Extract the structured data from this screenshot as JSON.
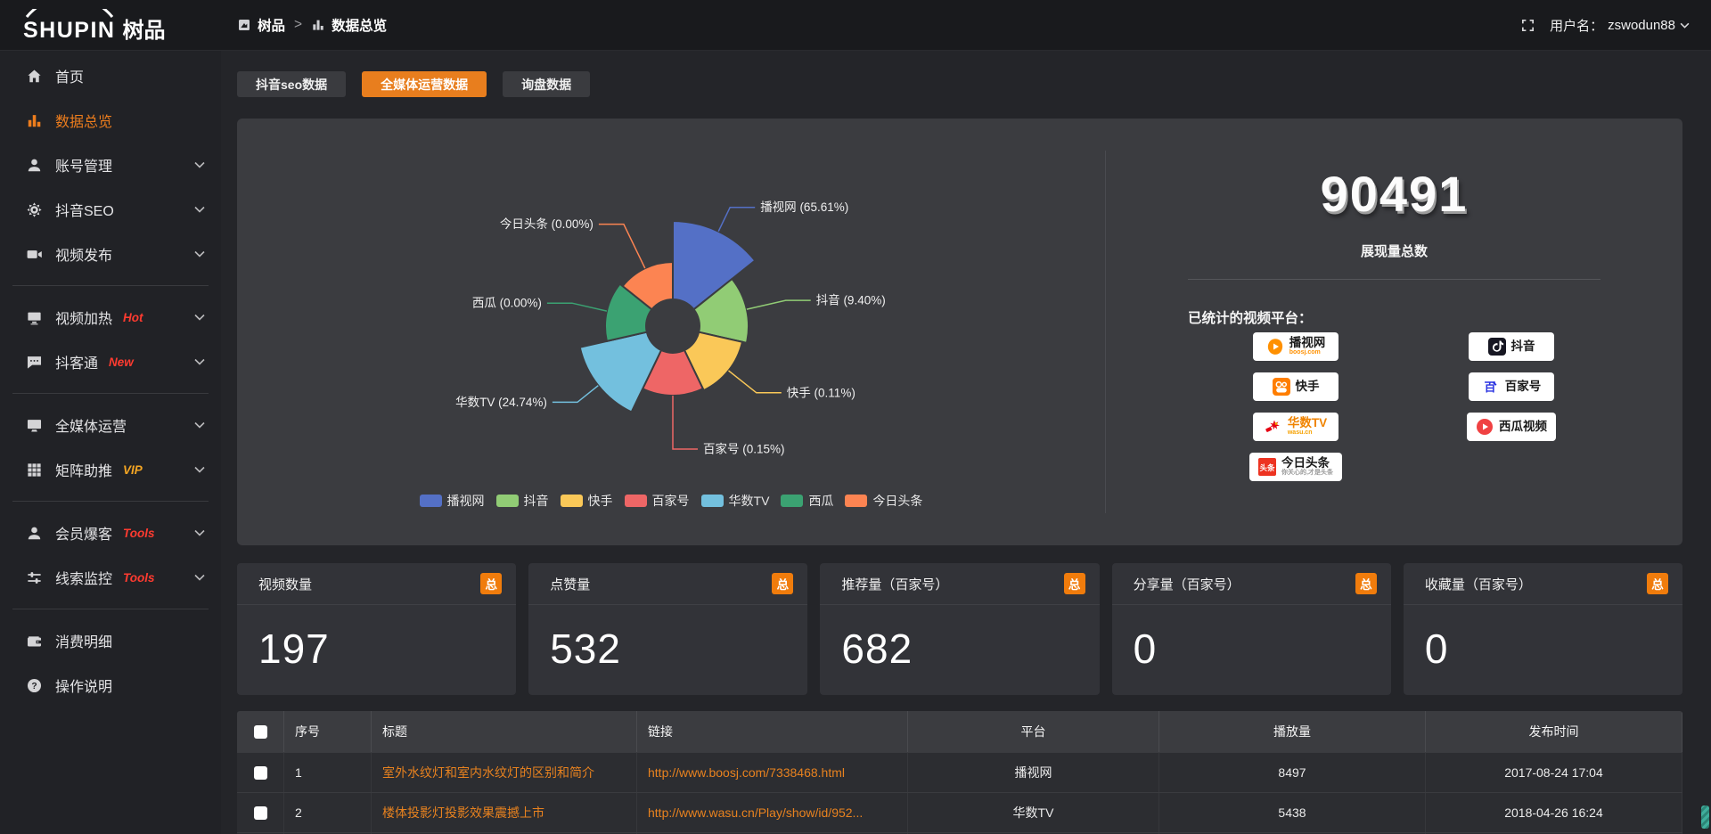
{
  "topbar": {
    "logo_text": "SHUPIN",
    "logo_text_cn": "树品",
    "breadcrumb": [
      {
        "label": "树品"
      },
      {
        "label": "数据总览"
      }
    ],
    "breadcrumb_separator": ">",
    "username_label": "用户名：",
    "username": "zswodun88"
  },
  "sidebar": {
    "items": [
      {
        "label": "首页",
        "icon": "home"
      },
      {
        "label": "数据总览",
        "icon": "bar-chart",
        "active": true
      },
      {
        "label": "账号管理",
        "icon": "user",
        "chevron": true
      },
      {
        "label": "抖音SEO",
        "icon": "gear",
        "chevron": true
      },
      {
        "label": "视频发布",
        "icon": "video",
        "chevron": true,
        "divider_after": true
      },
      {
        "label": "视频加热",
        "icon": "screen",
        "tag": "Hot",
        "tag_color": "#ff3b30",
        "chevron": true
      },
      {
        "label": "抖客通",
        "icon": "chat",
        "tag": "New",
        "tag_color": "#ff3b30",
        "chevron": true,
        "divider_after": true
      },
      {
        "label": "全媒体运营",
        "icon": "monitor",
        "chevron": true
      },
      {
        "label": "矩阵助推",
        "icon": "grid",
        "tag": "VIP",
        "tag_color": "#f5a623",
        "chevron": true,
        "divider_after": true
      },
      {
        "label": "会员爆客",
        "icon": "member",
        "tag": "Tools",
        "tag_color": "#ff3b30",
        "chevron": true
      },
      {
        "label": "线索监控",
        "icon": "sliders",
        "tag": "Tools",
        "tag_color": "#ff3b30",
        "chevron": true,
        "divider_after": true
      },
      {
        "label": "消费明细",
        "icon": "wallet"
      },
      {
        "label": "操作说明",
        "icon": "help"
      }
    ]
  },
  "tabs": [
    {
      "label": "抖音seo数据",
      "active": false
    },
    {
      "label": "全媒体运营数据",
      "active": true
    },
    {
      "label": "询盘数据",
      "active": false
    }
  ],
  "chart_data": {
    "type": "pie",
    "rose": true,
    "items": [
      {
        "name": "播视网",
        "percent": 65.61,
        "color": "#5470c6",
        "display_radius": 118
      },
      {
        "name": "抖音",
        "percent": 9.4,
        "color": "#91cc75",
        "display_radius": 85
      },
      {
        "name": "快手",
        "percent": 0.11,
        "color": "#fac858",
        "display_radius": 80
      },
      {
        "name": "百家号",
        "percent": 0.15,
        "color": "#ee6666",
        "display_radius": 78
      },
      {
        "name": "华数TV",
        "percent": 24.74,
        "color": "#73c0de",
        "display_radius": 107
      },
      {
        "name": "西瓜",
        "percent": 0.0,
        "color": "#3ba272",
        "display_radius": 76
      },
      {
        "name": "今日头条",
        "percent": 0.0,
        "color": "#fc8452",
        "display_radius": 72
      }
    ],
    "legend": [
      "播视网",
      "抖音",
      "快手",
      "百家号",
      "华数TV",
      "西瓜",
      "今日头条"
    ],
    "legend_position": "bottom"
  },
  "summary": {
    "total": "90491",
    "total_label": "展现量总数",
    "platforms_title": "已统计的视频平台：",
    "platforms_left": [
      {
        "name": "播视网",
        "sub": "boosj.com",
        "sub_color": "#ff9000",
        "logo": "boosj"
      },
      {
        "name": "快手",
        "logo": "kuaishou"
      },
      {
        "name": "华数TV",
        "name_color": "#f08300",
        "sub": "wasu.cn",
        "sub_color": "#f5a100",
        "logo": "wasu"
      },
      {
        "name": "今日头条",
        "sub": "你关心的,才是头条",
        "sub_color": "#999999",
        "logo": "toutiao"
      }
    ],
    "platforms_right": [
      {
        "name": "抖音",
        "logo": "douyin"
      },
      {
        "name": "百家号",
        "logo": "baijiahao"
      },
      {
        "name": "西瓜视频",
        "logo": "xigua"
      }
    ]
  },
  "stat_cards": [
    {
      "title": "视频数量",
      "badge": "总",
      "value": "197"
    },
    {
      "title": "点赞量",
      "badge": "总",
      "value": "532"
    },
    {
      "title": "推荐量（百家号）",
      "badge": "总",
      "value": "682"
    },
    {
      "title": "分享量（百家号）",
      "badge": "总",
      "value": "0"
    },
    {
      "title": "收藏量（百家号）",
      "badge": "总",
      "value": "0"
    }
  ],
  "table": {
    "columns": [
      "序号",
      "标题",
      "链接",
      "平台",
      "播放量",
      "发布时间"
    ],
    "rows": [
      {
        "no": "1",
        "title": "室外水纹灯和室内水纹灯的区别和简介",
        "link": "http://www.boosj.com/7338468.html",
        "platform": "播视网",
        "plays": "8497",
        "time": "2017-08-24 17:04"
      },
      {
        "no": "2",
        "title": "楼体投影灯投影效果震撼上市",
        "link": "http://www.wasu.cn/Play/show/id/952...",
        "platform": "华数TV",
        "plays": "5438",
        "time": "2018-04-26 16:24"
      }
    ]
  },
  "colors": {
    "accent": "#ed7d1d",
    "tab_active": "#e87e1e",
    "link": "#e8821f",
    "badge": "#f07c0c"
  }
}
